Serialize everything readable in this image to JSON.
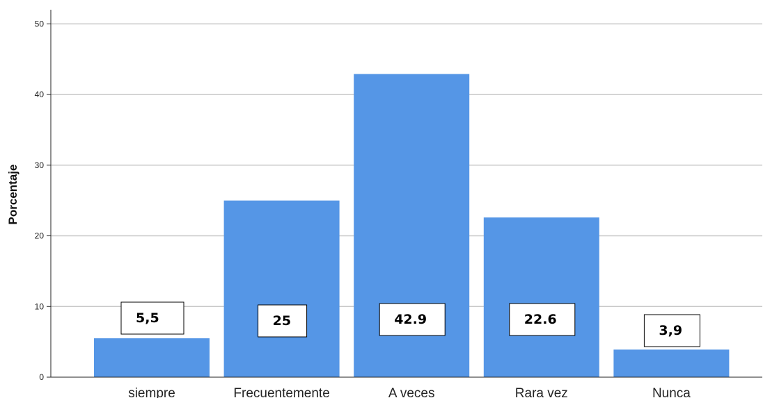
{
  "chart_data": {
    "type": "bar",
    "categories": [
      "siempre",
      "Frecuentemente",
      "A veces",
      "Rara vez",
      "Nunca"
    ],
    "values": [
      5.5,
      25,
      42.9,
      22.6,
      3.9
    ],
    "data_labels": [
      "5,5",
      "25",
      "42.9",
      "22.6",
      "3,9"
    ],
    "title": "",
    "xlabel": "",
    "ylabel": "Porcentaje",
    "ylim": [
      0,
      52
    ],
    "yticks": [
      0,
      10,
      20,
      30,
      40,
      50
    ],
    "grid": true,
    "bar_color": "#5596e6",
    "grid_color": "#c8c8c8"
  }
}
